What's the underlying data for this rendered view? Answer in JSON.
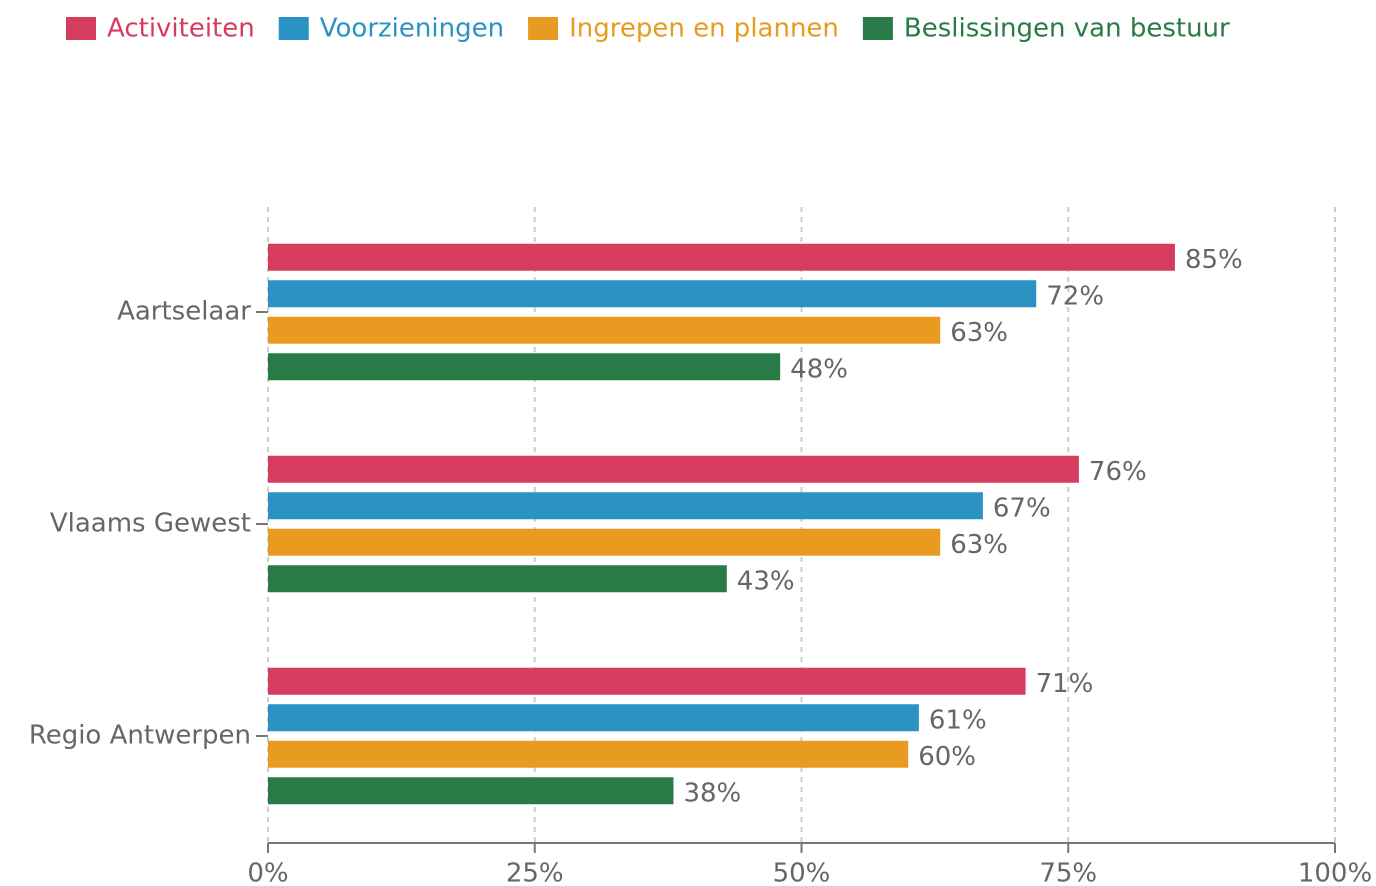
{
  "chart_data": {
    "type": "barh",
    "categories": [
      "Aartselaar",
      "Vlaams Gewest",
      "Regio Antwerpen"
    ],
    "series": [
      {
        "name": "Activiteiten",
        "color": "#d63c5e",
        "values": [
          85,
          76,
          71
        ],
        "value_labels": [
          "85%",
          "76%",
          "71%"
        ]
      },
      {
        "name": "Voorzieningen",
        "color": "#2b93c4",
        "values": [
          72,
          67,
          61
        ],
        "value_labels": [
          "72%",
          "67%",
          "61%"
        ]
      },
      {
        "name": "Ingrepen en plannen",
        "color": "#e89b20",
        "values": [
          63,
          63,
          60
        ],
        "value_labels": [
          "63%",
          "63%",
          "60%"
        ]
      },
      {
        "name": "Beslissingen van bestuur",
        "color": "#2a7a47",
        "values": [
          48,
          43,
          38
        ],
        "value_labels": [
          "48%",
          "43%",
          "38%"
        ]
      }
    ],
    "xlim": [
      0,
      100
    ],
    "xticks": [
      {
        "value": 0,
        "label": "0%"
      },
      {
        "value": 25,
        "label": "25%"
      },
      {
        "value": 50,
        "label": "50%"
      },
      {
        "value": 75,
        "label": "75%"
      },
      {
        "value": 100,
        "label": "100%"
      }
    ],
    "grid": true
  }
}
